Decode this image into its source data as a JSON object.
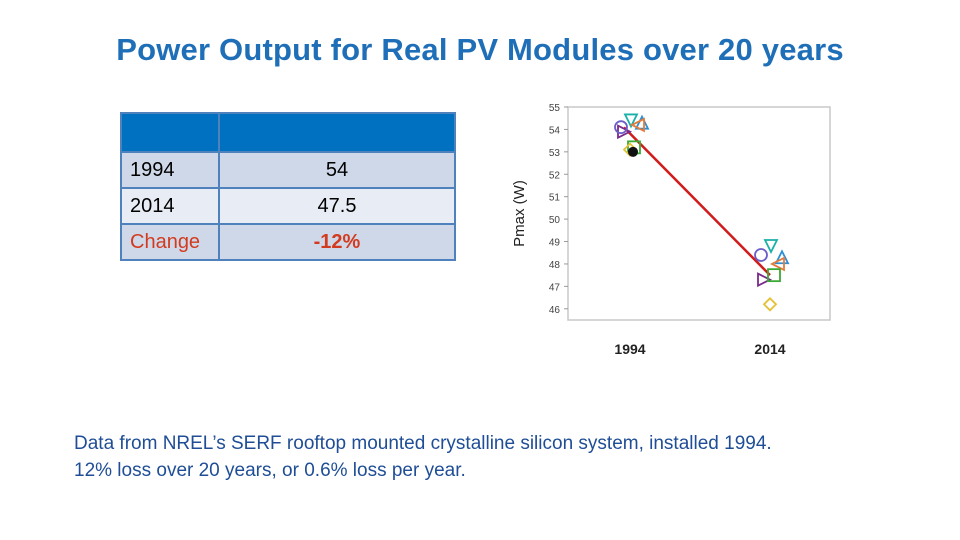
{
  "title": "Power Output for Real PV Modules over 20 years",
  "table": {
    "rows": [
      {
        "label": "1994",
        "value": "54"
      },
      {
        "label": "2014",
        "value": "47.5"
      },
      {
        "label": "Change",
        "value": "-12%"
      }
    ]
  },
  "caption": {
    "line1": "Data from NREL’s SERF rooftop mounted crystalline silicon system, installed 1994.",
    "line2": "12% loss over 20 years, or 0.6% loss per year."
  },
  "colors": {
    "title": "#1f6fb8",
    "table_header": "#0070c0",
    "change": "#d23b1f",
    "trend": "#d01c1c"
  },
  "chart_data": {
    "type": "scatter",
    "title": "",
    "ylabel": "Pmax (W)",
    "xlabel": "",
    "categories": [
      "1994",
      "2014"
    ],
    "ylim": [
      45.5,
      55
    ],
    "yticks": [
      46,
      47,
      48,
      49,
      50,
      51,
      52,
      53,
      54,
      55
    ],
    "grid": false,
    "trend_line": {
      "from": 54,
      "to": 47.5
    },
    "series": [
      {
        "marker": "triangle-up",
        "color": "#2b8fd6",
        "values": [
          54.3,
          48.3
        ]
      },
      {
        "marker": "triangle-down",
        "color": "#18b0a8",
        "values": [
          54.4,
          48.8
        ]
      },
      {
        "marker": "triangle-left",
        "color": "#e57a3b",
        "values": [
          54.2,
          48.0
        ]
      },
      {
        "marker": "triangle-right",
        "color": "#7a2a8a",
        "values": [
          53.9,
          47.3
        ]
      },
      {
        "marker": "circle",
        "color": "#6b5fc7",
        "values": [
          54.1,
          48.4
        ]
      },
      {
        "marker": "square",
        "color": "#3aaa35",
        "values": [
          53.2,
          47.5
        ]
      },
      {
        "marker": "diamond",
        "color": "#e3c23a",
        "values": [
          53.1,
          46.2
        ]
      },
      {
        "marker": "dot",
        "color": "#111111",
        "values": [
          53.0,
          null
        ]
      }
    ]
  }
}
